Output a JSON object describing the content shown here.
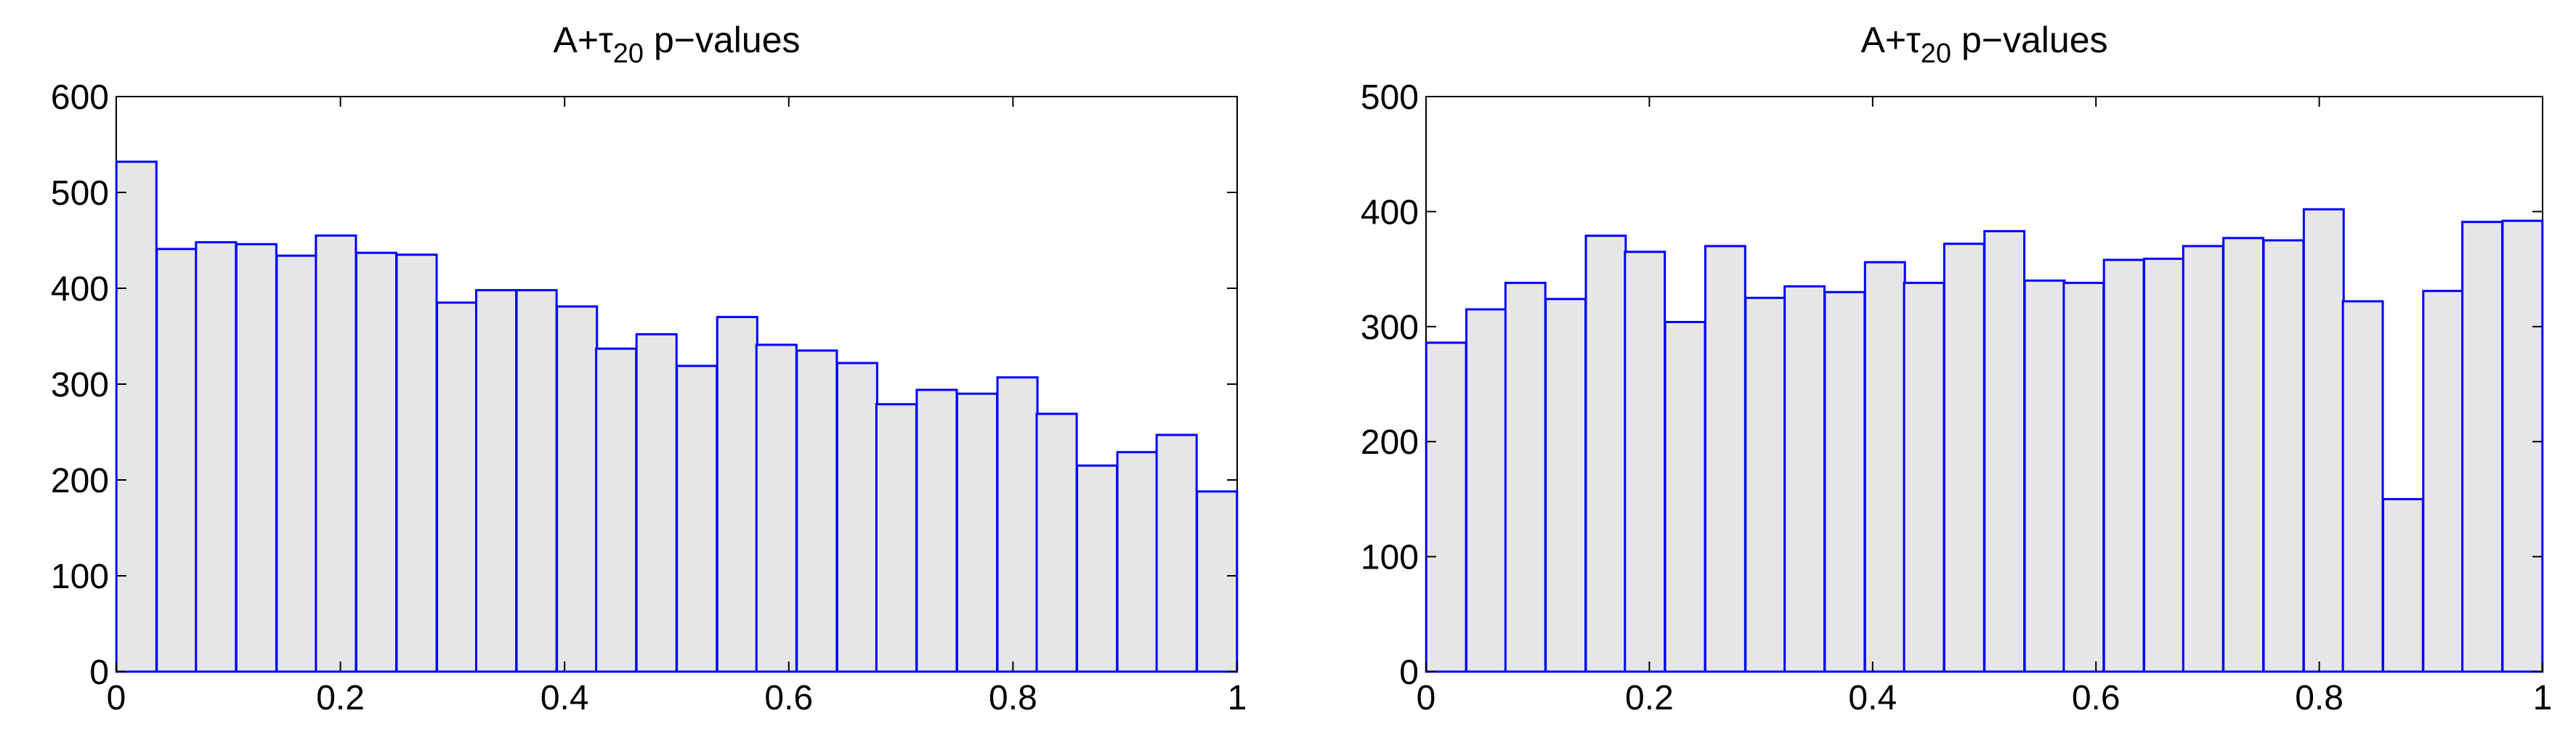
{
  "chart_data": [
    {
      "type": "bar",
      "title": {
        "prefix": "A+τ",
        "subscript": "20",
        "suffix": " p−values"
      },
      "xlabel": "",
      "ylabel": "",
      "xlim": [
        0,
        1
      ],
      "ylim": [
        0,
        600
      ],
      "xticks": [
        0,
        0.2,
        0.4,
        0.6,
        0.8,
        1
      ],
      "xtick_labels": [
        "0",
        "0.2",
        "0.4",
        "0.6",
        "0.8",
        "1"
      ],
      "yticks": [
        0,
        100,
        200,
        300,
        400,
        500,
        600
      ],
      "ytick_labels": [
        "0",
        "100",
        "200",
        "300",
        "400",
        "500",
        "600"
      ],
      "grid": false,
      "bar_fill": "#e6e6e6",
      "bar_edge": "#0000ff",
      "bin_width": 0.0357,
      "x": [
        0.018,
        0.054,
        0.089,
        0.125,
        0.161,
        0.196,
        0.232,
        0.268,
        0.304,
        0.339,
        0.375,
        0.411,
        0.446,
        0.482,
        0.518,
        0.554,
        0.589,
        0.625,
        0.661,
        0.696,
        0.732,
        0.768,
        0.804,
        0.839,
        0.875,
        0.911,
        0.946,
        0.982
      ],
      "values": [
        532,
        441,
        448,
        446,
        434,
        455,
        437,
        435,
        385,
        398,
        398,
        381,
        337,
        352,
        319,
        370,
        341,
        335,
        322,
        279,
        294,
        290,
        307,
        269,
        215,
        229,
        247,
        188
      ]
    },
    {
      "type": "bar",
      "title": {
        "prefix": "A+τ",
        "subscript": "20",
        "suffix": " p−values"
      },
      "xlabel": "",
      "ylabel": "",
      "xlim": [
        0,
        1
      ],
      "ylim": [
        0,
        500
      ],
      "xticks": [
        0,
        0.2,
        0.4,
        0.6,
        0.8,
        1
      ],
      "xtick_labels": [
        "0",
        "0.2",
        "0.4",
        "0.6",
        "0.8",
        "1"
      ],
      "yticks": [
        0,
        100,
        200,
        300,
        400,
        500
      ],
      "ytick_labels": [
        "0",
        "100",
        "200",
        "300",
        "400",
        "500"
      ],
      "grid": false,
      "bar_fill": "#e6e6e6",
      "bar_edge": "#0000ff",
      "bin_width": 0.0357,
      "x": [
        0.018,
        0.054,
        0.089,
        0.125,
        0.161,
        0.196,
        0.232,
        0.268,
        0.304,
        0.339,
        0.375,
        0.411,
        0.446,
        0.482,
        0.518,
        0.554,
        0.589,
        0.625,
        0.661,
        0.696,
        0.732,
        0.768,
        0.804,
        0.839,
        0.875,
        0.911,
        0.946,
        0.982
      ],
      "values": [
        286,
        315,
        338,
        324,
        379,
        365,
        304,
        370,
        325,
        335,
        330,
        356,
        338,
        372,
        383,
        340,
        338,
        358,
        359,
        370,
        377,
        375,
        402,
        322,
        150,
        331,
        391,
        392
      ]
    }
  ]
}
